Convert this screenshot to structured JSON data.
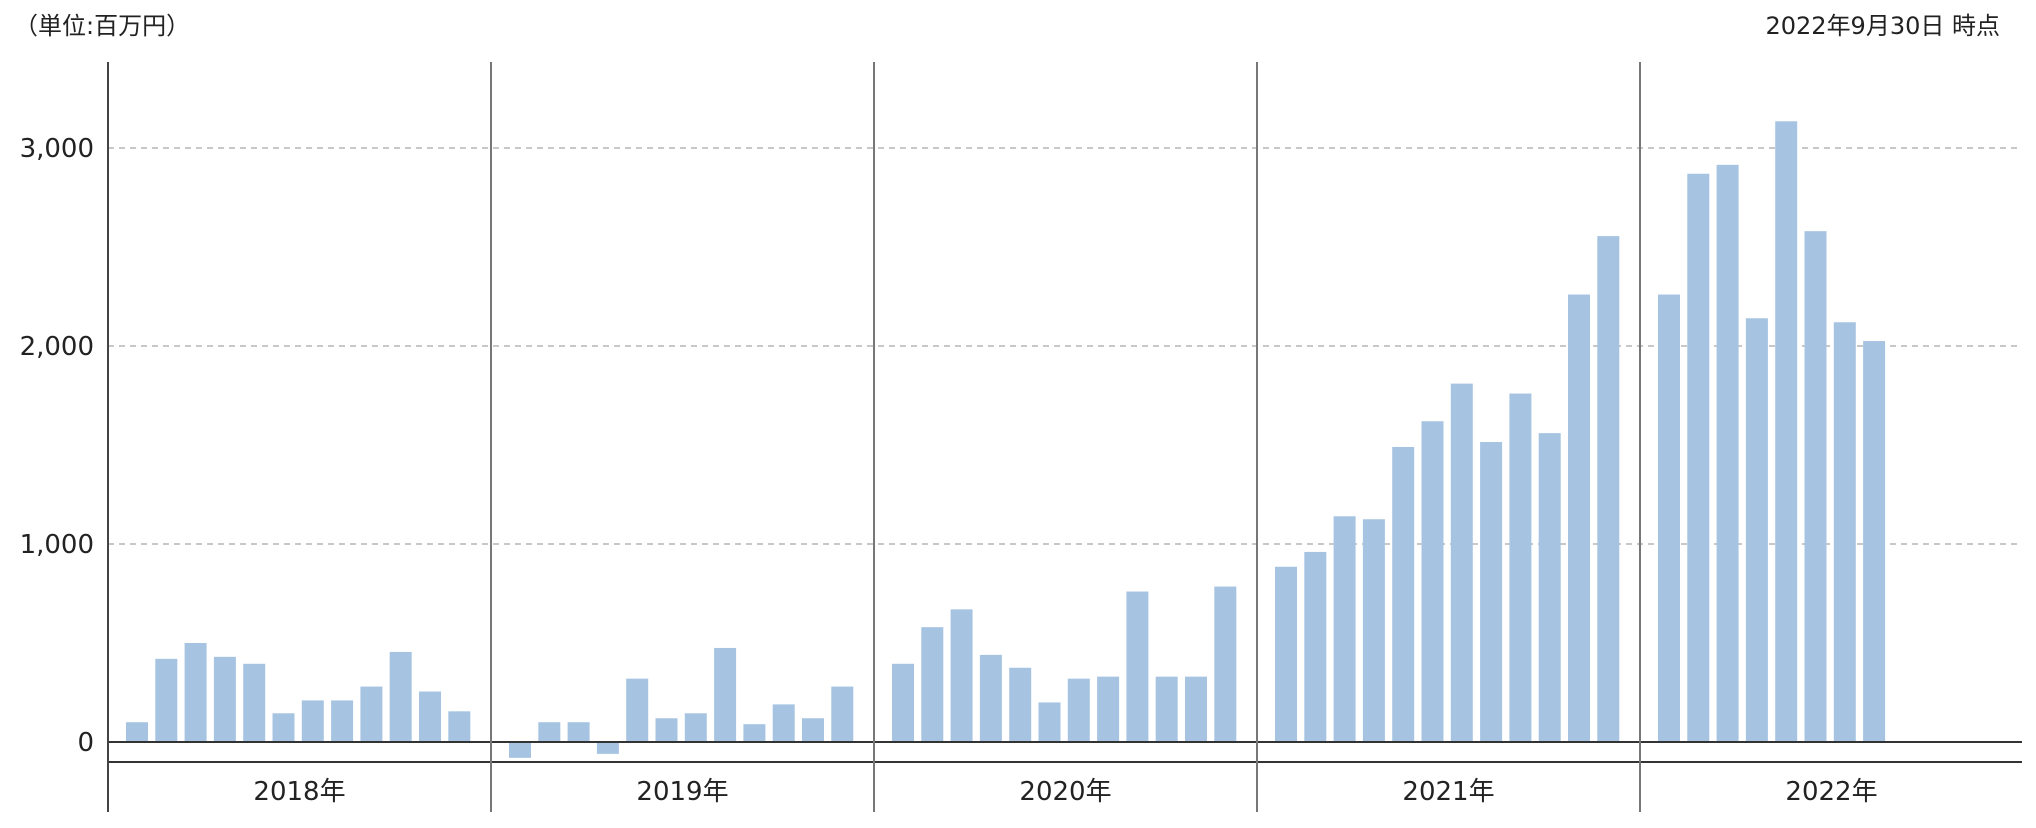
{
  "unit_label": "（単位:百万円）",
  "as_of_label": "2022年9月30日 時点",
  "chart_data": {
    "type": "bar",
    "title": "",
    "xlabel": "",
    "ylabel": "",
    "ylim": [
      -100,
      3500
    ],
    "yticks": [
      0,
      1000,
      2000,
      3000
    ],
    "ytick_labels": [
      "0",
      "1,000",
      "2,000",
      "3,000"
    ],
    "grid": true,
    "color": "#a6c4e2",
    "groups": [
      {
        "label": "2018年",
        "values": [
          100,
          420,
          500,
          430,
          395,
          145,
          210,
          210,
          280,
          455,
          255,
          155
        ]
      },
      {
        "label": "2019年",
        "values": [
          -80,
          100,
          100,
          -60,
          320,
          120,
          145,
          475,
          90,
          190,
          120,
          280
        ]
      },
      {
        "label": "2020年",
        "values": [
          395,
          580,
          670,
          440,
          375,
          200,
          320,
          330,
          760,
          330,
          330,
          785
        ]
      },
      {
        "label": "2021年",
        "values": [
          885,
          960,
          1140,
          1125,
          1490,
          1620,
          1810,
          1515,
          1760,
          1560,
          2260,
          2555
        ]
      },
      {
        "label": "2022年",
        "values": [
          2260,
          2870,
          2915,
          2140,
          3135,
          2580,
          2120,
          2025
        ]
      }
    ]
  }
}
